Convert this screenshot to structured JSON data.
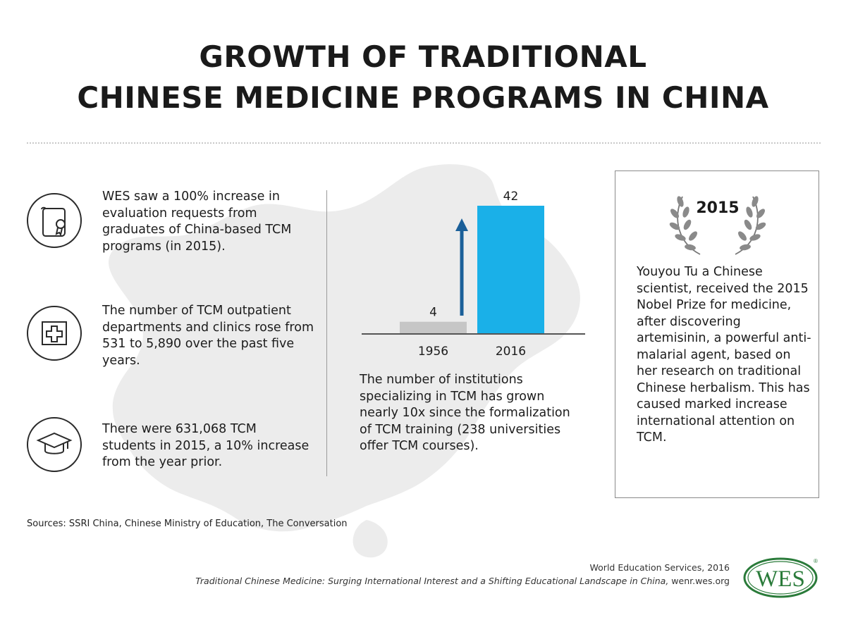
{
  "title": {
    "line1": "GROWTH OF TRADITIONAL",
    "line2": "CHINESE MEDICINE PROGRAMS IN CHINA"
  },
  "facts": [
    {
      "icon": "certificate-scroll-icon",
      "text": "WES saw a 100% increase in evaluation requests from graduates of China-based TCM programs (in 2015)."
    },
    {
      "icon": "medical-cross-icon",
      "text": "The number of TCM outpatient departments and clinics rose from 531 to 5,890 over the past five years."
    },
    {
      "icon": "graduation-cap-icon",
      "text": "There were 631,068 TCM students in 2015, a 10% increase from the year prior."
    }
  ],
  "chart_data": {
    "type": "bar",
    "categories": [
      "1956",
      "2016"
    ],
    "values": [
      4,
      42
    ],
    "data_labels": [
      "4",
      "42"
    ],
    "colors": [
      "#c6c6c6",
      "#1ab0e8"
    ],
    "arrow_color": "#1a5f99",
    "baseline_color": "#555555",
    "title": "",
    "xlabel": "",
    "ylabel": "",
    "ylim": [
      0,
      42
    ],
    "grid": false,
    "legend": "none"
  },
  "chart_caption": "The number of institutions specializing in TCM has grown nearly 10x since the formalization of TCM training (238 universities offer TCM courses).",
  "award": {
    "year": "2015",
    "icon": "laurel-wreath-icon",
    "text": "Youyou Tu a Chinese scientist, received the 2015 Nobel Prize for medicine, after discovering artemisinin, a powerful anti-malarial agent, based on her research on traditional Chinese herbalism. This has caused marked increase international attention on TCM."
  },
  "sources": "Sources: SSRI China, Chinese Ministry of Education, The Conversation",
  "credit": {
    "org": "World Education Services, 2016",
    "report_title": "Traditional Chinese Medicine: Surging International Interest and a Shifting Educational Landscape in China,",
    "site": " wenr.wes.org"
  },
  "logo": {
    "text": "WES",
    "registered": "®",
    "color": "#2a7b3a"
  }
}
